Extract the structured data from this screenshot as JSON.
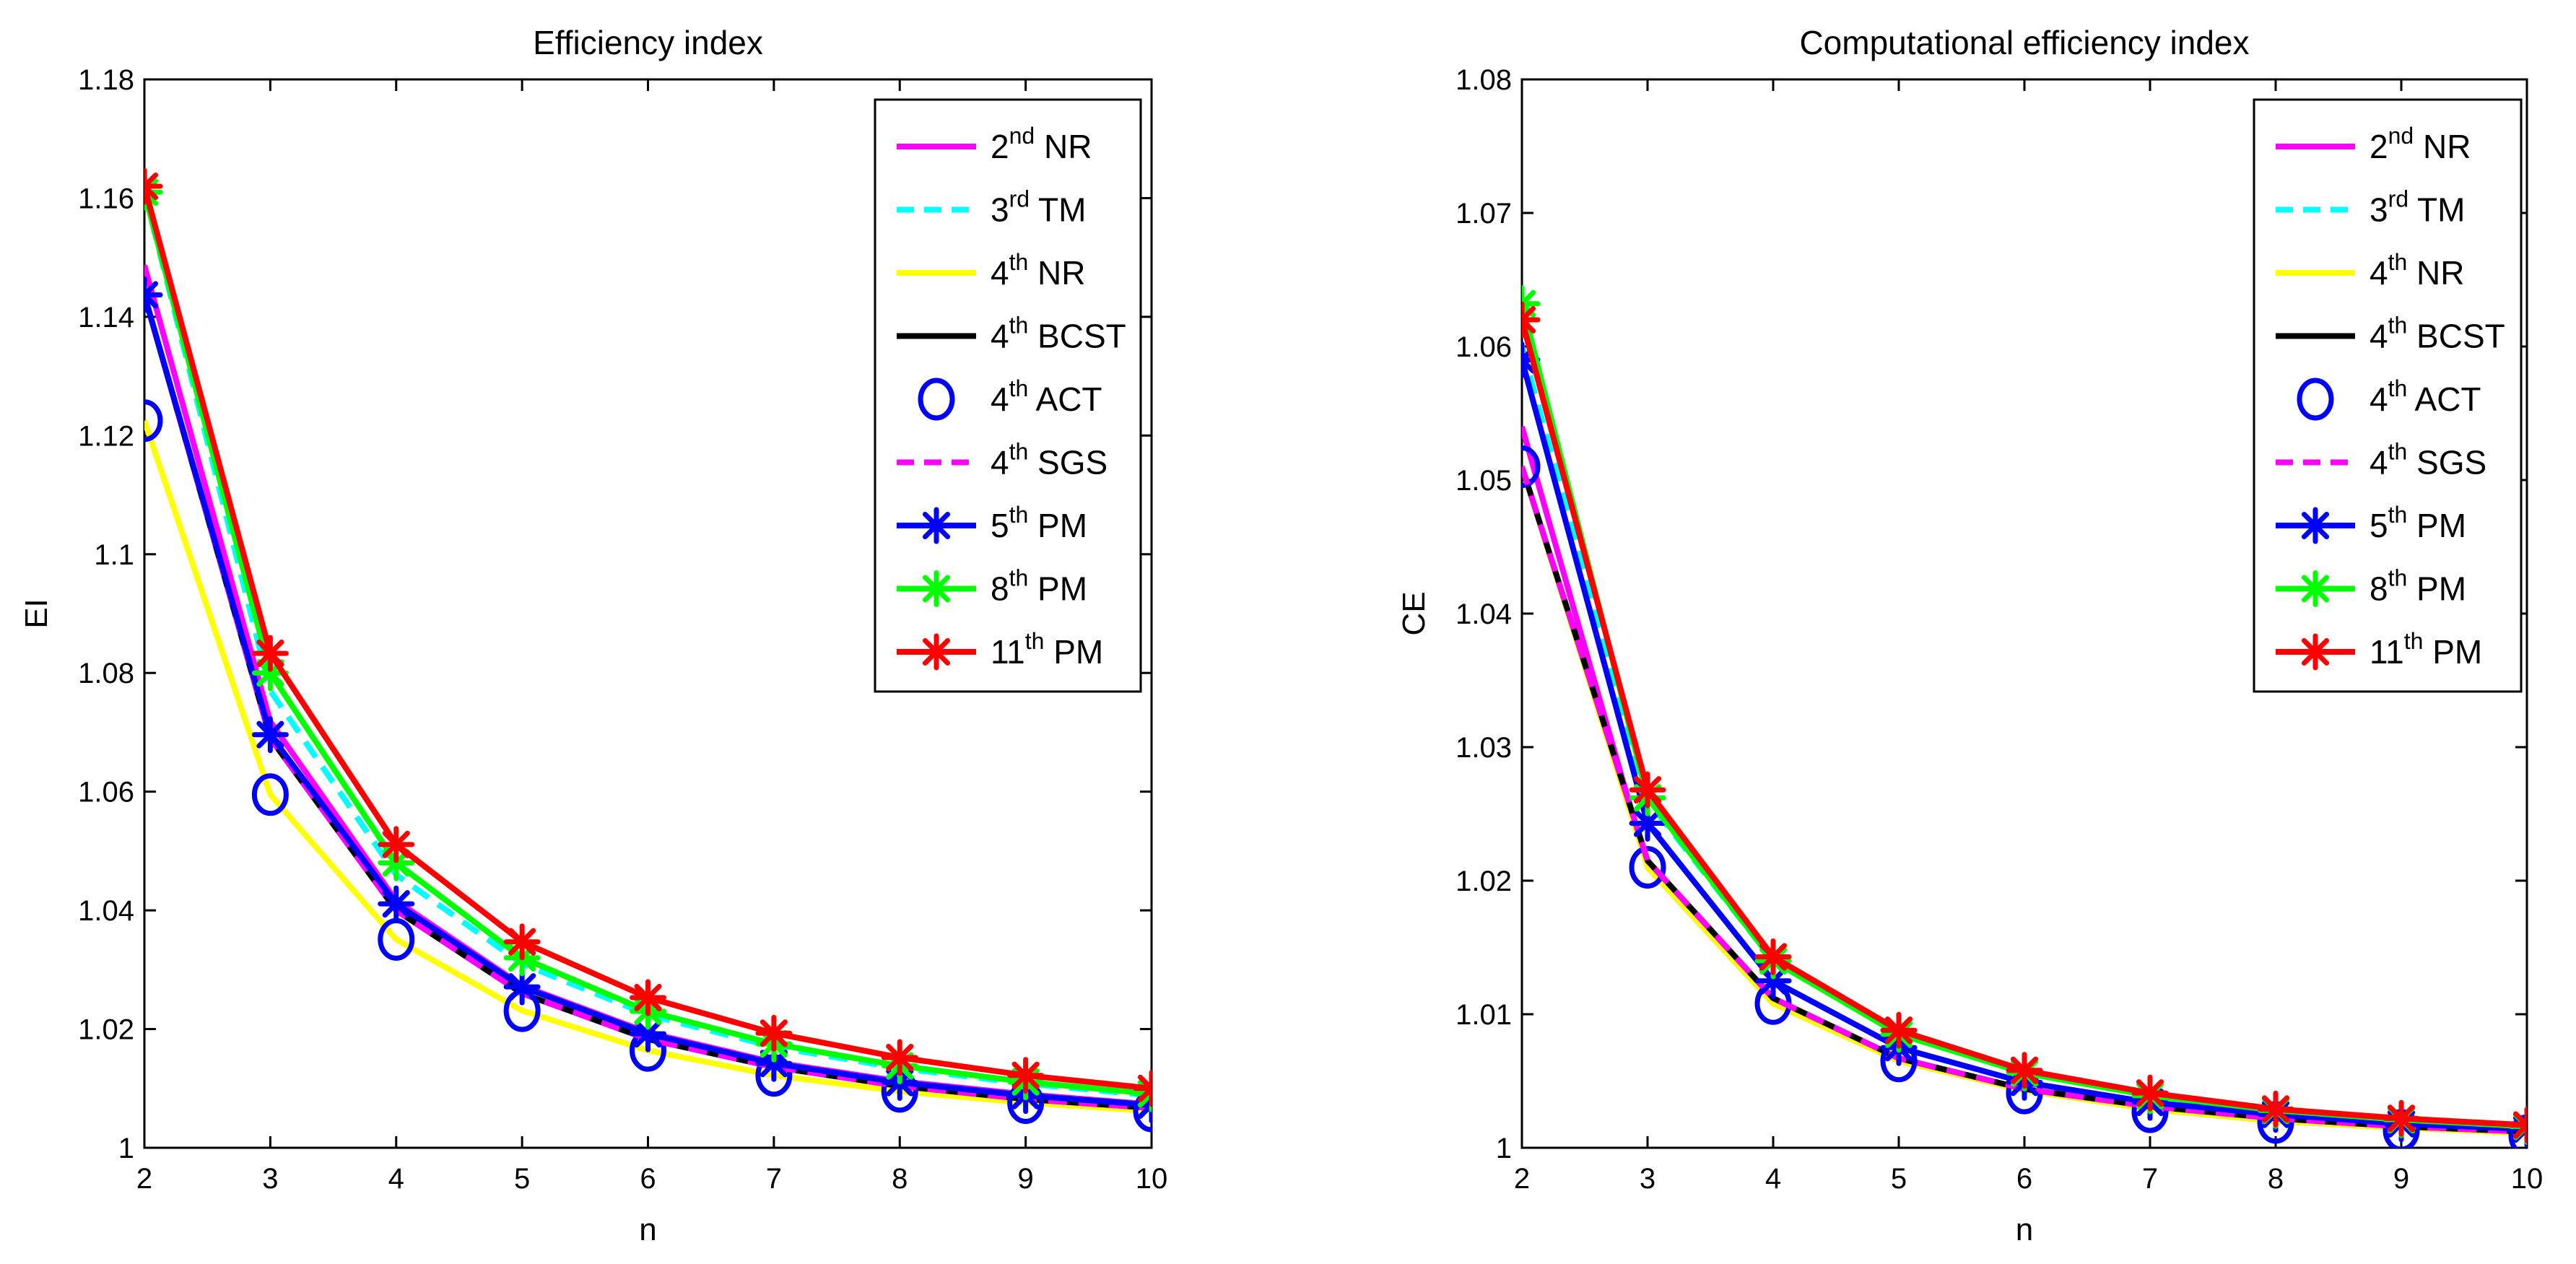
{
  "chart_data": [
    {
      "type": "line",
      "title": "Efficiency index",
      "xlabel": "n",
      "ylabel": "EI",
      "xlim": [
        2,
        10
      ],
      "ylim": [
        1,
        1.18
      ],
      "xticks": [
        "2",
        "3",
        "4",
        "5",
        "6",
        "7",
        "8",
        "9",
        "10"
      ],
      "yticks": [
        "1",
        "1.02",
        "1.04",
        "1.06",
        "1.08",
        "1.1",
        "1.12",
        "1.14",
        "1.16",
        "1.18"
      ],
      "grid": false,
      "legend_position": "top-right",
      "x": [
        2,
        3,
        4,
        5,
        6,
        7,
        8,
        9,
        10
      ],
      "series": [
        {
          "name": "NR",
          "order": "2",
          "sup": "nd",
          "color": "#ff00ff",
          "style": "solid",
          "marker": "none",
          "values": [
            1.1487,
            1.0718,
            1.0416,
            1.0273,
            1.0194,
            1.0144,
            1.0112,
            1.009,
            1.0073
          ]
        },
        {
          "name": "TM",
          "order": "3",
          "sup": "rd",
          "color": "#00ffff",
          "style": "dashed",
          "marker": "none",
          "values": [
            1.161,
            1.077,
            1.046,
            1.031,
            1.0224,
            1.017,
            1.0134,
            1.0108,
            1.0088
          ]
        },
        {
          "name": "NR",
          "order": "4",
          "sup": "th",
          "color": "#ffff00",
          "style": "solid",
          "marker": "none",
          "values": [
            1.1225,
            1.0595,
            1.0351,
            1.0231,
            1.0164,
            1.0122,
            1.0095,
            1.0076,
            1.0062
          ]
        },
        {
          "name": "BCST",
          "order": "4",
          "sup": "th",
          "color": "#000000",
          "style": "solid",
          "marker": "none",
          "values": [
            1.1437,
            1.069,
            1.04,
            1.026,
            1.0183,
            1.0136,
            1.0104,
            1.0082,
            1.0067
          ]
        },
        {
          "name": "ACT",
          "order": "4",
          "sup": "th",
          "color": "#0000ff",
          "style": "none",
          "marker": "circle",
          "values": [
            1.1225,
            1.0595,
            1.0351,
            1.0231,
            1.0164,
            1.0122,
            1.0095,
            1.0076,
            1.0062
          ]
        },
        {
          "name": "SGS",
          "order": "4",
          "sup": "th",
          "color": "#ff00ff",
          "style": "dashed",
          "marker": "none",
          "values": [
            1.1437,
            1.069,
            1.04,
            1.026,
            1.0183,
            1.0136,
            1.0104,
            1.0082,
            1.0067
          ]
        },
        {
          "name": "PM",
          "order": "5",
          "sup": "th",
          "color": "#0000ff",
          "style": "solid",
          "marker": "star",
          "values": [
            1.1437,
            1.0696,
            1.0411,
            1.0271,
            1.0192,
            1.0142,
            1.011,
            1.0088,
            1.0072
          ]
        },
        {
          "name": "PM",
          "order": "8",
          "sup": "th",
          "color": "#00ff00",
          "style": "solid",
          "marker": "star",
          "values": [
            1.161,
            1.08,
            1.048,
            1.032,
            1.023,
            1.0175,
            1.0138,
            1.0111,
            1.0091
          ]
        },
        {
          "name": "PM",
          "order": "11",
          "sup": "th",
          "color": "#ff0000",
          "style": "solid",
          "marker": "star",
          "values": [
            1.162,
            1.0833,
            1.0511,
            1.0347,
            1.0253,
            1.0193,
            1.0152,
            1.0122,
            1.01
          ]
        }
      ]
    },
    {
      "type": "line",
      "title": "Computational efficiency index",
      "xlabel": "n",
      "ylabel": "CE",
      "xlim": [
        2,
        10
      ],
      "ylim": [
        1,
        1.08
      ],
      "xticks": [
        "2",
        "3",
        "4",
        "5",
        "6",
        "7",
        "8",
        "9",
        "10"
      ],
      "yticks": [
        "1",
        "1.01",
        "1.02",
        "1.03",
        "1.04",
        "1.05",
        "1.06",
        "1.07",
        "1.08"
      ],
      "grid": false,
      "legend_position": "top-right",
      "x": [
        2,
        3,
        4,
        5,
        6,
        7,
        8,
        9,
        10
      ],
      "series": [
        {
          "name": "NR",
          "order": "2",
          "sup": "nd",
          "color": "#ff00ff",
          "style": "solid",
          "marker": "none",
          "values": [
            1.054,
            1.021,
            1.0108,
            1.0065,
            1.0043,
            1.0029,
            1.002,
            1.0015,
            1.0011
          ]
        },
        {
          "name": "TM",
          "order": "3",
          "sup": "rd",
          "color": "#00ffff",
          "style": "dashed",
          "marker": "none",
          "values": [
            1.06,
            1.026,
            1.014,
            1.0085,
            1.0057,
            1.004,
            1.0029,
            1.0021,
            1.0016
          ]
        },
        {
          "name": "NR",
          "order": "4",
          "sup": "th",
          "color": "#ffff00",
          "style": "solid",
          "marker": "none",
          "values": [
            1.051,
            1.021,
            1.0108,
            1.0065,
            1.0043,
            1.0029,
            1.002,
            1.0015,
            1.0011
          ]
        },
        {
          "name": "BCST",
          "order": "4",
          "sup": "th",
          "color": "#000000",
          "style": "solid",
          "marker": "none",
          "values": [
            1.051,
            1.0215,
            1.0112,
            1.0067,
            1.0044,
            1.0031,
            1.0022,
            1.0016,
            1.0012
          ]
        },
        {
          "name": "ACT",
          "order": "4",
          "sup": "th",
          "color": "#0000ff",
          "style": "none",
          "marker": "circle",
          "values": [
            1.051,
            1.021,
            1.0108,
            1.0065,
            1.0041,
            1.0027,
            1.0019,
            1.0013,
            1.0009
          ]
        },
        {
          "name": "SGS",
          "order": "4",
          "sup": "th",
          "color": "#ff00ff",
          "style": "dashed",
          "marker": "none",
          "values": [
            1.051,
            1.0215,
            1.0112,
            1.0067,
            1.0044,
            1.0031,
            1.0022,
            1.0016,
            1.0012
          ]
        },
        {
          "name": "PM",
          "order": "5",
          "sup": "th",
          "color": "#0000ff",
          "style": "solid",
          "marker": "star",
          "values": [
            1.059,
            1.0243,
            1.0125,
            1.0075,
            1.0049,
            1.0034,
            1.0025,
            1.0018,
            1.0014
          ]
        },
        {
          "name": "PM",
          "order": "8",
          "sup": "th",
          "color": "#00ff00",
          "style": "solid",
          "marker": "star",
          "values": [
            1.0632,
            1.0262,
            1.014,
            1.0085,
            1.0056,
            1.0039,
            1.0028,
            1.0021,
            1.0016
          ]
        },
        {
          "name": "PM",
          "order": "11",
          "sup": "th",
          "color": "#ff0000",
          "style": "solid",
          "marker": "star",
          "values": [
            1.062,
            1.0268,
            1.0143,
            1.0088,
            1.0058,
            1.0041,
            1.0029,
            1.0022,
            1.0017
          ]
        }
      ]
    }
  ]
}
